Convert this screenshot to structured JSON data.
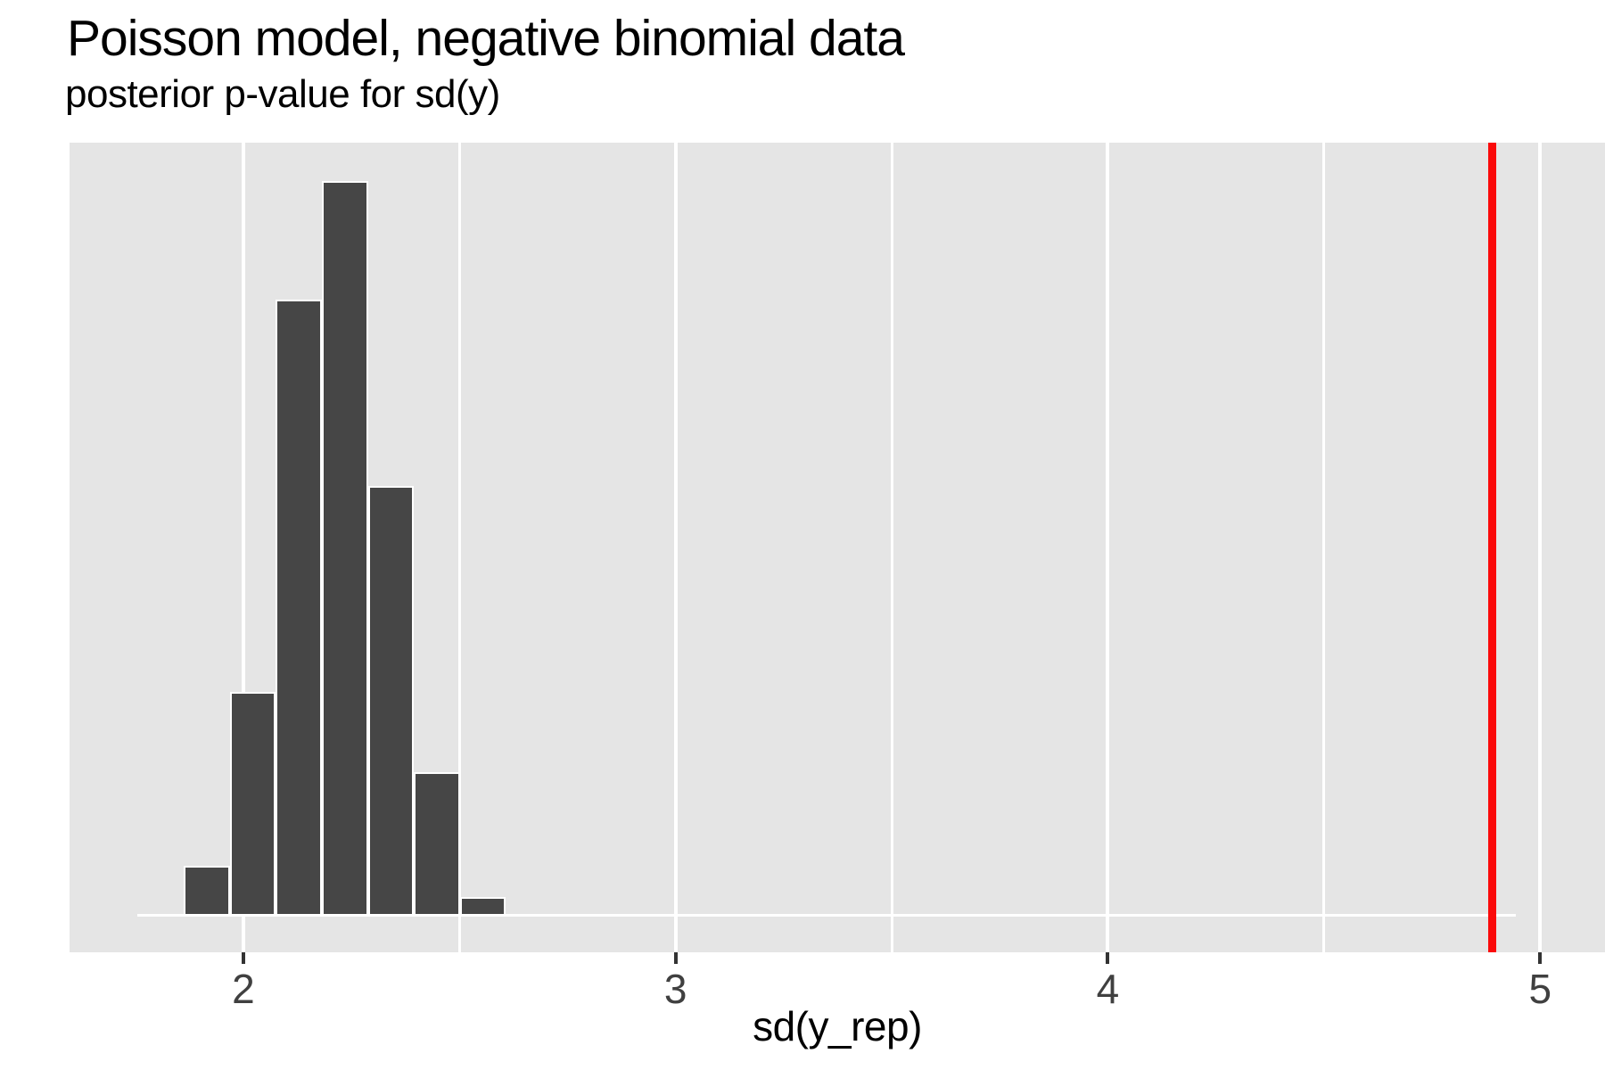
{
  "header": {
    "title": "Poisson model, negative binomial data",
    "subtitle": "posterior p-value for sd(y)"
  },
  "chart_data": {
    "type": "histogram",
    "title": "Poisson model, negative binomial data",
    "subtitle": "posterior p-value for sd(y)",
    "xlabel": "sd(y_rep)",
    "ylabel": "",
    "legend_position": "none",
    "grid": "vertical-white-on-gray",
    "xlim": [
      1.598,
      5.15
    ],
    "ylim": [
      -5.9,
      124.2
    ],
    "x_major_ticks": [
      2,
      3,
      4,
      5
    ],
    "x_tick_labels": [
      "2",
      "3",
      "4",
      "5"
    ],
    "x_minor_gridlines": [
      2.5,
      3.5,
      4.5
    ],
    "bin_width": 0.1065,
    "bin_edges": [
      1.755,
      1.862,
      1.9685,
      2.075,
      2.1815,
      2.288,
      2.3945,
      2.501,
      2.6075
    ],
    "counts": [
      0,
      8,
      36,
      99,
      118,
      69,
      23,
      3
    ],
    "zero_baseline_extent": [
      1.755,
      4.944
    ],
    "observed_value": 4.89,
    "colors": {
      "panel_bg": "#E5E5E5",
      "bar_fill": "#464646",
      "bar_stroke": "#FFFFFF",
      "gridline": "#FFFFFF",
      "observed_line": "#FB0A0A",
      "tick_mark": "#333333",
      "axis_text": "#404040",
      "title_text": "#000000"
    }
  }
}
